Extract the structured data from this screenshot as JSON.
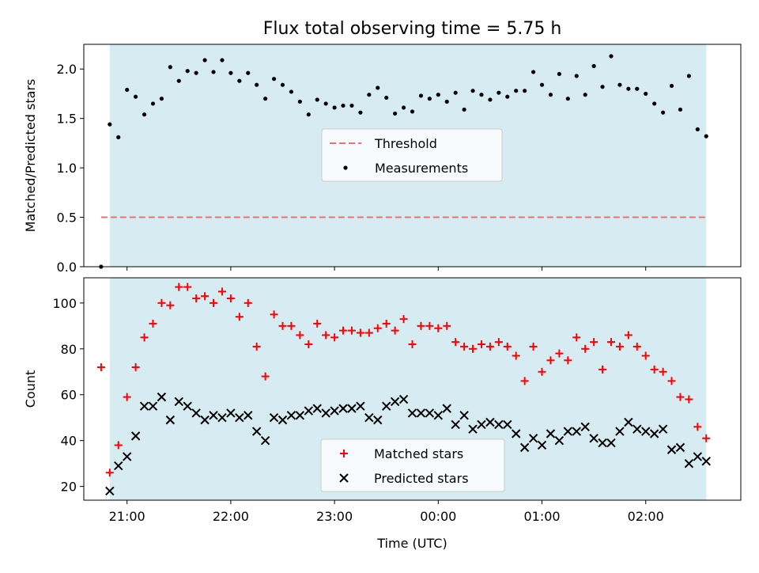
{
  "chart_data": [
    {
      "type": "scatter",
      "title": "Flux total observing time = 5.75 h",
      "xlabel": "",
      "ylabel": "Matched/Predicted stars",
      "ylim": [
        0,
        2.25
      ],
      "yticks": [
        "0.0",
        "0.5",
        "1.0",
        "1.5",
        "2.0"
      ],
      "xlim": [
        "20:35",
        "02:55"
      ],
      "observing_window": [
        "20:50",
        "02:35"
      ],
      "legend": {
        "position": "center",
        "entries": [
          "Threshold",
          "Measurements"
        ]
      },
      "threshold": {
        "name": "Threshold",
        "value": 0.5,
        "x_start": "20:45",
        "x_end": "02:35",
        "color": "#f07070"
      },
      "series": [
        {
          "name": "Measurements",
          "color": "#000000",
          "x": [
            "20:45",
            "20:50",
            "20:55",
            "21:00",
            "21:05",
            "21:10",
            "21:15",
            "21:20",
            "21:25",
            "21:30",
            "21:35",
            "21:40",
            "21:45",
            "21:50",
            "21:55",
            "22:00",
            "22:05",
            "22:10",
            "22:15",
            "22:20",
            "22:25",
            "22:30",
            "22:35",
            "22:40",
            "22:45",
            "22:50",
            "22:55",
            "23:00",
            "23:05",
            "23:10",
            "23:15",
            "23:20",
            "23:25",
            "23:30",
            "23:35",
            "23:40",
            "23:45",
            "23:50",
            "23:55",
            "00:00",
            "00:05",
            "00:10",
            "00:15",
            "00:20",
            "00:25",
            "00:30",
            "00:35",
            "00:40",
            "00:45",
            "00:50",
            "00:55",
            "01:00",
            "01:05",
            "01:10",
            "01:15",
            "01:20",
            "01:25",
            "01:30",
            "01:35",
            "01:40",
            "01:45",
            "01:50",
            "01:55",
            "02:00",
            "02:05",
            "02:10",
            "02:15",
            "02:20",
            "02:25",
            "02:30",
            "02:35"
          ],
          "y": [
            0.0,
            1.44,
            1.31,
            1.79,
            1.72,
            1.54,
            1.65,
            1.7,
            2.02,
            1.88,
            1.98,
            1.96,
            2.09,
            1.97,
            2.09,
            1.96,
            1.88,
            1.96,
            1.84,
            1.7,
            1.9,
            1.84,
            1.77,
            1.67,
            1.54,
            1.69,
            1.65,
            1.61,
            1.63,
            1.63,
            1.56,
            1.74,
            1.81,
            1.71,
            1.55,
            1.61,
            1.57,
            1.73,
            1.7,
            1.74,
            1.67,
            1.76,
            1.59,
            1.78,
            1.74,
            1.69,
            1.76,
            1.72,
            1.78,
            1.78,
            1.97,
            1.84,
            1.74,
            1.95,
            1.7,
            1.93,
            1.74,
            2.03,
            1.82,
            2.13,
            1.84,
            1.8,
            1.8,
            1.75,
            1.65,
            1.56,
            1.83,
            1.59,
            1.93,
            1.39,
            1.32
          ]
        }
      ]
    },
    {
      "type": "scatter",
      "title": "",
      "xlabel": "Time (UTC)",
      "ylabel": "Count",
      "ylim": [
        14,
        111
      ],
      "yticks": [
        "20",
        "40",
        "60",
        "80",
        "100"
      ],
      "xticks": [
        "21:00",
        "22:00",
        "23:00",
        "00:00",
        "01:00",
        "02:00"
      ],
      "xlim": [
        "20:35",
        "02:55"
      ],
      "observing_window": [
        "20:50",
        "02:35"
      ],
      "legend": {
        "position": "lower center",
        "entries": [
          "Matched stars",
          "Predicted stars"
        ]
      },
      "series": [
        {
          "name": "Matched stars",
          "marker": "+",
          "color": "#ff0000",
          "x": [
            "20:45",
            "20:50",
            "20:55",
            "21:00",
            "21:05",
            "21:10",
            "21:15",
            "21:20",
            "21:25",
            "21:30",
            "21:35",
            "21:40",
            "21:45",
            "21:50",
            "21:55",
            "22:00",
            "22:05",
            "22:10",
            "22:15",
            "22:20",
            "22:25",
            "22:30",
            "22:35",
            "22:40",
            "22:45",
            "22:50",
            "22:55",
            "23:00",
            "23:05",
            "23:10",
            "23:15",
            "23:20",
            "23:25",
            "23:30",
            "23:35",
            "23:40",
            "23:45",
            "23:50",
            "23:55",
            "00:00",
            "00:05",
            "00:10",
            "00:15",
            "00:20",
            "00:25",
            "00:30",
            "00:35",
            "00:40",
            "00:45",
            "00:50",
            "00:55",
            "01:00",
            "01:05",
            "01:10",
            "01:15",
            "01:20",
            "01:25",
            "01:30",
            "01:35",
            "01:40",
            "01:45",
            "01:50",
            "01:55",
            "02:00",
            "02:05",
            "02:10",
            "02:15",
            "02:20",
            "02:25",
            "02:30",
            "02:35"
          ],
          "y": [
            72,
            26,
            38,
            59,
            72,
            85,
            91,
            100,
            99,
            107,
            107,
            102,
            103,
            100,
            105,
            102,
            94,
            100,
            81,
            68,
            95,
            90,
            90,
            86,
            82,
            91,
            86,
            85,
            88,
            88,
            87,
            87,
            89,
            91,
            88,
            93,
            82,
            90,
            90,
            89,
            90,
            83,
            81,
            80,
            82,
            81,
            83,
            81,
            77,
            66,
            81,
            70,
            75,
            78,
            75,
            85,
            80,
            83,
            71,
            83,
            81,
            86,
            81,
            77,
            71,
            70,
            66,
            59,
            58,
            46,
            41
          ]
        },
        {
          "name": "Predicted stars",
          "marker": "x",
          "color": "#000000",
          "x": [
            "20:50",
            "20:55",
            "21:00",
            "21:05",
            "21:10",
            "21:15",
            "21:20",
            "21:25",
            "21:30",
            "21:35",
            "21:40",
            "21:45",
            "21:50",
            "21:55",
            "22:00",
            "22:05",
            "22:10",
            "22:15",
            "22:20",
            "22:25",
            "22:30",
            "22:35",
            "22:40",
            "22:45",
            "22:50",
            "22:55",
            "23:00",
            "23:05",
            "23:10",
            "23:15",
            "23:20",
            "23:25",
            "23:30",
            "23:35",
            "23:40",
            "23:45",
            "23:50",
            "23:55",
            "00:00",
            "00:05",
            "00:10",
            "00:15",
            "00:20",
            "00:25",
            "00:30",
            "00:35",
            "00:40",
            "00:45",
            "00:50",
            "00:55",
            "01:00",
            "01:05",
            "01:10",
            "01:15",
            "01:20",
            "01:25",
            "01:30",
            "01:35",
            "01:40",
            "01:45",
            "01:50",
            "01:55",
            "02:00",
            "02:05",
            "02:10",
            "02:15",
            "02:20",
            "02:25",
            "02:30",
            "02:35"
          ],
          "y": [
            18,
            29,
            33,
            42,
            55,
            55,
            59,
            49,
            57,
            55,
            52,
            49,
            51,
            50,
            52,
            50,
            51,
            44,
            40,
            50,
            49,
            51,
            51,
            53,
            54,
            52,
            53,
            54,
            54,
            55,
            50,
            49,
            55,
            57,
            58,
            52,
            52,
            52,
            51,
            54,
            47,
            51,
            45,
            47,
            48,
            47,
            47,
            43,
            37,
            41,
            38,
            43,
            40,
            44,
            44,
            46,
            41,
            39,
            39,
            44,
            48,
            45,
            44,
            43,
            45,
            36,
            37,
            30,
            33,
            31
          ]
        }
      ]
    }
  ],
  "colors": {
    "observing_band": "#add8e6",
    "threshold": "#f07070",
    "matched": "#ff0000",
    "predicted": "#000000"
  }
}
